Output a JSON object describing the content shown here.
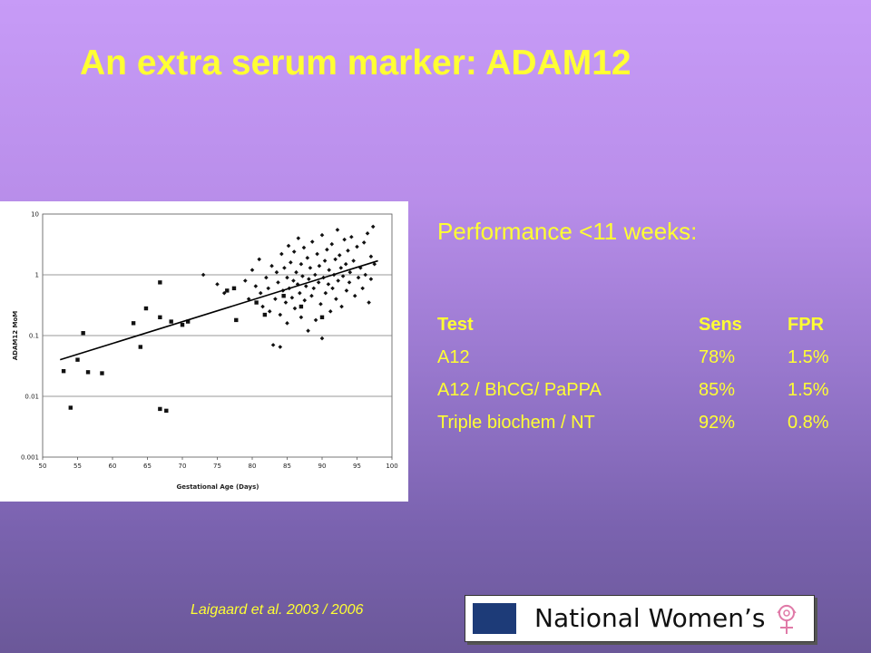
{
  "slide": {
    "title": "An extra serum marker: ADAM12",
    "citation": "Laigaard et al. 2003 / 2006",
    "logo_text": "National Women’s"
  },
  "performance": {
    "heading": "Performance <11 weeks:",
    "headers": [
      "Test",
      "Sens",
      "FPR"
    ],
    "rows": [
      [
        "A12",
        "78%",
        "1.5%"
      ],
      [
        "A12 / BhCG/ PaPPA",
        "85%",
        "1.5%"
      ],
      [
        "Triple biochem / NT",
        "92%",
        "0.8%"
      ]
    ]
  },
  "colors": {
    "title": "#ffff33",
    "text": "#ffff33",
    "markers": "#111111"
  },
  "chart_data": {
    "type": "scatter",
    "xlabel": "Gestational Age (Days)",
    "ylabel": "ADAM12 MoM",
    "xlim": [
      50,
      100
    ],
    "ylim": [
      0.001,
      10
    ],
    "y_scale": "log",
    "grid": true,
    "x_ticks": [
      "50",
      "55",
      "60",
      "65",
      "70",
      "75",
      "80",
      "85",
      "90",
      "95",
      "100"
    ],
    "y_ticks": [
      "0.001",
      "0.01",
      "0.1",
      "1",
      "10"
    ],
    "series": [
      {
        "marker": "square",
        "points": [
          [
            53.0,
            0.026
          ],
          [
            54.0,
            0.0065
          ],
          [
            55.0,
            0.04
          ],
          [
            55.8,
            0.11
          ],
          [
            56.5,
            0.025
          ],
          [
            58.5,
            0.024
          ],
          [
            63.0,
            0.16
          ],
          [
            64.0,
            0.065
          ],
          [
            64.8,
            0.28
          ],
          [
            66.8,
            0.75
          ],
          [
            66.8,
            0.2
          ],
          [
            66.8,
            0.0062
          ],
          [
            67.7,
            0.0058
          ],
          [
            68.4,
            0.17
          ],
          [
            70.0,
            0.15
          ],
          [
            70.8,
            0.17
          ],
          [
            76.4,
            0.55
          ],
          [
            77.4,
            0.6
          ],
          [
            77.7,
            0.18
          ],
          [
            80.6,
            0.35
          ],
          [
            81.8,
            0.22
          ],
          [
            84.5,
            0.45
          ],
          [
            87.0,
            0.3
          ],
          [
            90.0,
            0.2
          ]
        ]
      },
      {
        "marker": "diamond",
        "points": [
          [
            73.0,
            1.0
          ],
          [
            75.0,
            0.7
          ],
          [
            76.0,
            0.5
          ],
          [
            79.0,
            0.8
          ],
          [
            79.5,
            0.4
          ],
          [
            80.0,
            1.2
          ],
          [
            80.5,
            0.65
          ],
          [
            81.0,
            1.8
          ],
          [
            81.2,
            0.5
          ],
          [
            81.5,
            0.3
          ],
          [
            82.0,
            0.9
          ],
          [
            82.3,
            0.6
          ],
          [
            82.5,
            0.25
          ],
          [
            82.8,
            1.4
          ],
          [
            83.0,
            0.07
          ],
          [
            83.3,
            0.4
          ],
          [
            83.5,
            1.1
          ],
          [
            83.7,
            0.75
          ],
          [
            84.0,
            0.065
          ],
          [
            84.0,
            0.22
          ],
          [
            84.2,
            2.2
          ],
          [
            84.4,
            0.55
          ],
          [
            84.6,
            1.3
          ],
          [
            84.8,
            0.35
          ],
          [
            85.0,
            0.9
          ],
          [
            85.0,
            0.16
          ],
          [
            85.2,
            3.0
          ],
          [
            85.3,
            0.6
          ],
          [
            85.5,
            1.6
          ],
          [
            85.7,
            0.42
          ],
          [
            85.9,
            0.8
          ],
          [
            86.0,
            2.4
          ],
          [
            86.1,
            0.28
          ],
          [
            86.3,
            1.1
          ],
          [
            86.5,
            0.7
          ],
          [
            86.6,
            4.0
          ],
          [
            86.8,
            0.5
          ],
          [
            87.0,
            1.5
          ],
          [
            87.0,
            0.2
          ],
          [
            87.2,
            0.95
          ],
          [
            87.4,
            2.8
          ],
          [
            87.5,
            0.38
          ],
          [
            87.7,
            0.65
          ],
          [
            87.9,
            1.9
          ],
          [
            88.0,
            0.12
          ],
          [
            88.1,
            0.85
          ],
          [
            88.3,
            1.3
          ],
          [
            88.5,
            0.45
          ],
          [
            88.6,
            3.5
          ],
          [
            88.8,
            0.6
          ],
          [
            89.0,
            1.0
          ],
          [
            89.1,
            0.18
          ],
          [
            89.3,
            2.2
          ],
          [
            89.5,
            0.75
          ],
          [
            89.6,
            1.4
          ],
          [
            89.8,
            0.33
          ],
          [
            90.0,
            0.09
          ],
          [
            90.0,
            4.5
          ],
          [
            90.2,
            0.9
          ],
          [
            90.4,
            1.7
          ],
          [
            90.5,
            0.5
          ],
          [
            90.7,
            2.6
          ],
          [
            90.9,
            0.7
          ],
          [
            91.0,
            1.2
          ],
          [
            91.2,
            0.25
          ],
          [
            91.4,
            3.2
          ],
          [
            91.5,
            0.6
          ],
          [
            91.7,
            1.0
          ],
          [
            91.9,
            1.8
          ],
          [
            92.0,
            0.4
          ],
          [
            92.2,
            5.5
          ],
          [
            92.3,
            0.8
          ],
          [
            92.5,
            2.1
          ],
          [
            92.7,
            1.3
          ],
          [
            92.8,
            0.3
          ],
          [
            93.0,
            0.95
          ],
          [
            93.2,
            3.8
          ],
          [
            93.4,
            1.5
          ],
          [
            93.5,
            0.55
          ],
          [
            93.7,
            2.5
          ],
          [
            93.9,
            0.75
          ],
          [
            94.0,
            1.1
          ],
          [
            94.2,
            4.2
          ],
          [
            94.5,
            1.7
          ],
          [
            94.7,
            0.45
          ],
          [
            95.0,
            2.9
          ],
          [
            95.2,
            0.9
          ],
          [
            95.5,
            1.3
          ],
          [
            95.8,
            0.6
          ],
          [
            96.0,
            3.4
          ],
          [
            96.2,
            1.0
          ],
          [
            96.5,
            4.8
          ],
          [
            96.7,
            0.35
          ],
          [
            97.0,
            2.0
          ],
          [
            97.3,
            6.2
          ],
          [
            97.5,
            1.5
          ],
          [
            97.0,
            0.85
          ]
        ]
      }
    ],
    "trendline": {
      "x": [
        52.5,
        98.0
      ],
      "y": [
        0.04,
        1.7
      ]
    }
  }
}
